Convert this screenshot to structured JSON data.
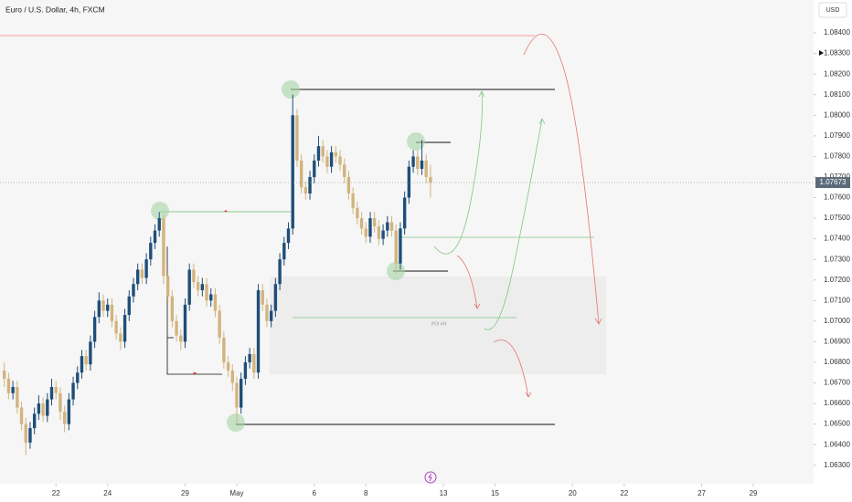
{
  "chart_data": {
    "type": "candlestick",
    "title": "Euro / U.S. Dollar, 4h, FXCM",
    "currency": "USD",
    "annotation": "POI 4H",
    "up_color": "#1f4e79",
    "down_color": "#d2b47e",
    "grid": false,
    "ylim": [
      1.0621,
      1.0856
    ],
    "yticks": [
      {
        "value": 1.063,
        "label": "1.06300"
      },
      {
        "value": 1.064,
        "label": "1.06400"
      },
      {
        "value": 1.065,
        "label": "1.06500"
      },
      {
        "value": 1.066,
        "label": "1.06600"
      },
      {
        "value": 1.067,
        "label": "1.06700"
      },
      {
        "value": 1.068,
        "label": "1.06800"
      },
      {
        "value": 1.069,
        "label": "1.06900"
      },
      {
        "value": 1.07,
        "label": "1.07000"
      },
      {
        "value": 1.071,
        "label": "1.07100"
      },
      {
        "value": 1.072,
        "label": "1.07200"
      },
      {
        "value": 1.073,
        "label": "1.07300"
      },
      {
        "value": 1.074,
        "label": "1.07400"
      },
      {
        "value": 1.075,
        "label": "1.07500"
      },
      {
        "value": 1.076,
        "label": "1.07600"
      },
      {
        "value": 1.077,
        "label": "1.07700"
      },
      {
        "value": 1.078,
        "label": "1.07800"
      },
      {
        "value": 1.079,
        "label": "1.07900"
      },
      {
        "value": 1.08,
        "label": "1.08000"
      },
      {
        "value": 1.081,
        "label": "1.08100"
      },
      {
        "value": 1.082,
        "label": "1.08200"
      },
      {
        "value": 1.083,
        "label": "1.08300"
      },
      {
        "value": 1.084,
        "label": "1.08400"
      }
    ],
    "xlim": [
      -1,
      188
    ],
    "xticks": [
      {
        "value": 12,
        "label": "22"
      },
      {
        "value": 24,
        "label": "24"
      },
      {
        "value": 42,
        "label": "29"
      },
      {
        "value": 54,
        "label": "May"
      },
      {
        "value": 72,
        "label": "6"
      },
      {
        "value": 84,
        "label": "8"
      },
      {
        "value": 102,
        "label": "13"
      },
      {
        "value": 114,
        "label": "15"
      },
      {
        "value": 132,
        "label": "20"
      },
      {
        "value": 144,
        "label": "22"
      },
      {
        "value": 162,
        "label": "27"
      },
      {
        "value": 174,
        "label": "29"
      }
    ],
    "ohlc": [
      [
        1.0676,
        1.068,
        1.0668,
        1.0672
      ],
      [
        1.0672,
        1.0675,
        1.0662,
        1.0665
      ],
      [
        1.0665,
        1.0671,
        1.0662,
        1.0668
      ],
      [
        1.0668,
        1.0671,
        1.0655,
        1.0658
      ],
      [
        1.0658,
        1.0661,
        1.0647,
        1.065
      ],
      [
        1.065,
        1.0653,
        1.0635,
        1.0641
      ],
      [
        1.0641,
        1.0651,
        1.0638,
        1.0648
      ],
      [
        1.0648,
        1.0658,
        1.0645,
        1.0655
      ],
      [
        1.0655,
        1.0664,
        1.0652,
        1.066
      ],
      [
        1.066,
        1.0663,
        1.0651,
        1.0654
      ],
      [
        1.0654,
        1.0665,
        1.0651,
        1.0662
      ],
      [
        1.0662,
        1.0672,
        1.0659,
        1.0668
      ],
      [
        1.0668,
        1.0671,
        1.0662,
        1.0665
      ],
      [
        1.0665,
        1.0668,
        1.0652,
        1.0656
      ],
      [
        1.0656,
        1.0659,
        1.0646,
        1.065
      ],
      [
        1.065,
        1.0665,
        1.0647,
        1.0662
      ],
      [
        1.0662,
        1.0673,
        1.0659,
        1.067
      ],
      [
        1.067,
        1.0678,
        1.0667,
        1.0675
      ],
      [
        1.0675,
        1.0686,
        1.0672,
        1.0683
      ],
      [
        1.0683,
        1.0686,
        1.0676,
        1.0679
      ],
      [
        1.0679,
        1.0693,
        1.0676,
        1.069
      ],
      [
        1.069,
        1.0705,
        1.0687,
        1.0702
      ],
      [
        1.0702,
        1.0714,
        1.0699,
        1.071
      ],
      [
        1.071,
        1.0713,
        1.0702,
        1.0705
      ],
      [
        1.0705,
        1.0711,
        1.0702,
        1.0708
      ],
      [
        1.0708,
        1.0711,
        1.0697,
        1.07
      ],
      [
        1.07,
        1.0703,
        1.0691,
        1.0694
      ],
      [
        1.0694,
        1.0697,
        1.0686,
        1.069
      ],
      [
        1.069,
        1.0706,
        1.0687,
        1.0703
      ],
      [
        1.0703,
        1.0715,
        1.07,
        1.0712
      ],
      [
        1.0712,
        1.0721,
        1.0709,
        1.0718
      ],
      [
        1.0718,
        1.0728,
        1.0715,
        1.0725
      ],
      [
        1.0725,
        1.0728,
        1.0718,
        1.0721
      ],
      [
        1.0721,
        1.0733,
        1.0718,
        1.073
      ],
      [
        1.073,
        1.0741,
        1.0727,
        1.0738
      ],
      [
        1.0738,
        1.0747,
        1.0735,
        1.0744
      ],
      [
        1.0744,
        1.0753,
        1.0741,
        1.075
      ],
      [
        1.075,
        1.0752,
        1.0718,
        1.0722
      ],
      [
        1.0722,
        1.0725,
        1.0709,
        1.0712
      ],
      [
        1.0712,
        1.0715,
        1.0697,
        1.07
      ],
      [
        1.07,
        1.0703,
        1.069,
        1.0693
      ],
      [
        1.0693,
        1.0696,
        1.0686,
        1.069
      ],
      [
        1.069,
        1.0711,
        1.0687,
        1.0708
      ],
      [
        1.0708,
        1.0728,
        1.0705,
        1.0725
      ],
      [
        1.0725,
        1.0728,
        1.0716,
        1.0719
      ],
      [
        1.0719,
        1.0722,
        1.0712,
        1.0715
      ],
      [
        1.0715,
        1.0721,
        1.0712,
        1.0718
      ],
      [
        1.0718,
        1.0721,
        1.0707,
        1.071
      ],
      [
        1.071,
        1.0716,
        1.0707,
        1.0713
      ],
      [
        1.0713,
        1.0716,
        1.0702,
        1.0705
      ],
      [
        1.0705,
        1.0708,
        1.0689,
        1.0692
      ],
      [
        1.0692,
        1.0695,
        1.0677,
        1.068
      ],
      [
        1.068,
        1.0683,
        1.0673,
        1.0676
      ],
      [
        1.0676,
        1.0679,
        1.0666,
        1.067
      ],
      [
        1.067,
        1.0673,
        1.065,
        1.0658
      ],
      [
        1.0658,
        1.0675,
        1.0655,
        1.0672
      ],
      [
        1.0672,
        1.0683,
        1.0669,
        1.068
      ],
      [
        1.068,
        1.0687,
        1.0677,
        1.0684
      ],
      [
        1.0684,
        1.0687,
        1.0672,
        1.0675
      ],
      [
        1.0675,
        1.0718,
        1.0672,
        1.0715
      ],
      [
        1.0715,
        1.0718,
        1.0705,
        1.0708
      ],
      [
        1.0708,
        1.0711,
        1.0697,
        1.07
      ],
      [
        1.07,
        1.0708,
        1.0697,
        1.0705
      ],
      [
        1.0705,
        1.0721,
        1.0702,
        1.0718
      ],
      [
        1.0718,
        1.0733,
        1.0715,
        1.073
      ],
      [
        1.073,
        1.0741,
        1.0727,
        1.0738
      ],
      [
        1.0738,
        1.0748,
        1.0735,
        1.0745
      ],
      [
        1.0745,
        1.081,
        1.0742,
        1.08
      ],
      [
        1.08,
        1.0803,
        1.0775,
        1.0778
      ],
      [
        1.0778,
        1.0781,
        1.0762,
        1.0765
      ],
      [
        1.0765,
        1.0768,
        1.0759,
        1.0762
      ],
      [
        1.0762,
        1.0773,
        1.0759,
        1.077
      ],
      [
        1.077,
        1.0781,
        1.0767,
        1.0778
      ],
      [
        1.0778,
        1.079,
        1.0775,
        1.0785
      ],
      [
        1.0785,
        1.0788,
        1.0777,
        1.078
      ],
      [
        1.078,
        1.0783,
        1.0772,
        1.0775
      ],
      [
        1.0775,
        1.0785,
        1.0772,
        1.0782
      ],
      [
        1.0782,
        1.0785,
        1.0777,
        1.078
      ],
      [
        1.078,
        1.0783,
        1.0773,
        1.0776
      ],
      [
        1.0776,
        1.0779,
        1.0767,
        1.077
      ],
      [
        1.077,
        1.0773,
        1.0759,
        1.0762
      ],
      [
        1.0762,
        1.0765,
        1.0752,
        1.0755
      ],
      [
        1.0755,
        1.0758,
        1.0747,
        1.075
      ],
      [
        1.075,
        1.0753,
        1.0742,
        1.0745
      ],
      [
        1.0745,
        1.0748,
        1.0738,
        1.0741
      ],
      [
        1.0741,
        1.0753,
        1.0738,
        1.075
      ],
      [
        1.075,
        1.0753,
        1.0743,
        1.0746
      ],
      [
        1.0746,
        1.0749,
        1.0737,
        1.074
      ],
      [
        1.074,
        1.0747,
        1.0737,
        1.0744
      ],
      [
        1.0744,
        1.0751,
        1.0741,
        1.0748
      ],
      [
        1.0748,
        1.0751,
        1.0741,
        1.0744
      ],
      [
        1.0744,
        1.0747,
        1.0723,
        1.0728
      ],
      [
        1.0728,
        1.0748,
        1.0725,
        1.0745
      ],
      [
        1.0745,
        1.0763,
        1.0742,
        1.076
      ],
      [
        1.076,
        1.0778,
        1.0757,
        1.0775
      ],
      [
        1.0775,
        1.0783,
        1.0772,
        1.078
      ],
      [
        1.078,
        1.0783,
        1.0771,
        1.0774
      ],
      [
        1.0774,
        1.0788,
        1.0771,
        1.0778
      ],
      [
        1.0778,
        1.0781,
        1.0767,
        1.077
      ],
      [
        1.077,
        1.0776,
        1.076,
        1.07673
      ]
    ]
  }
}
